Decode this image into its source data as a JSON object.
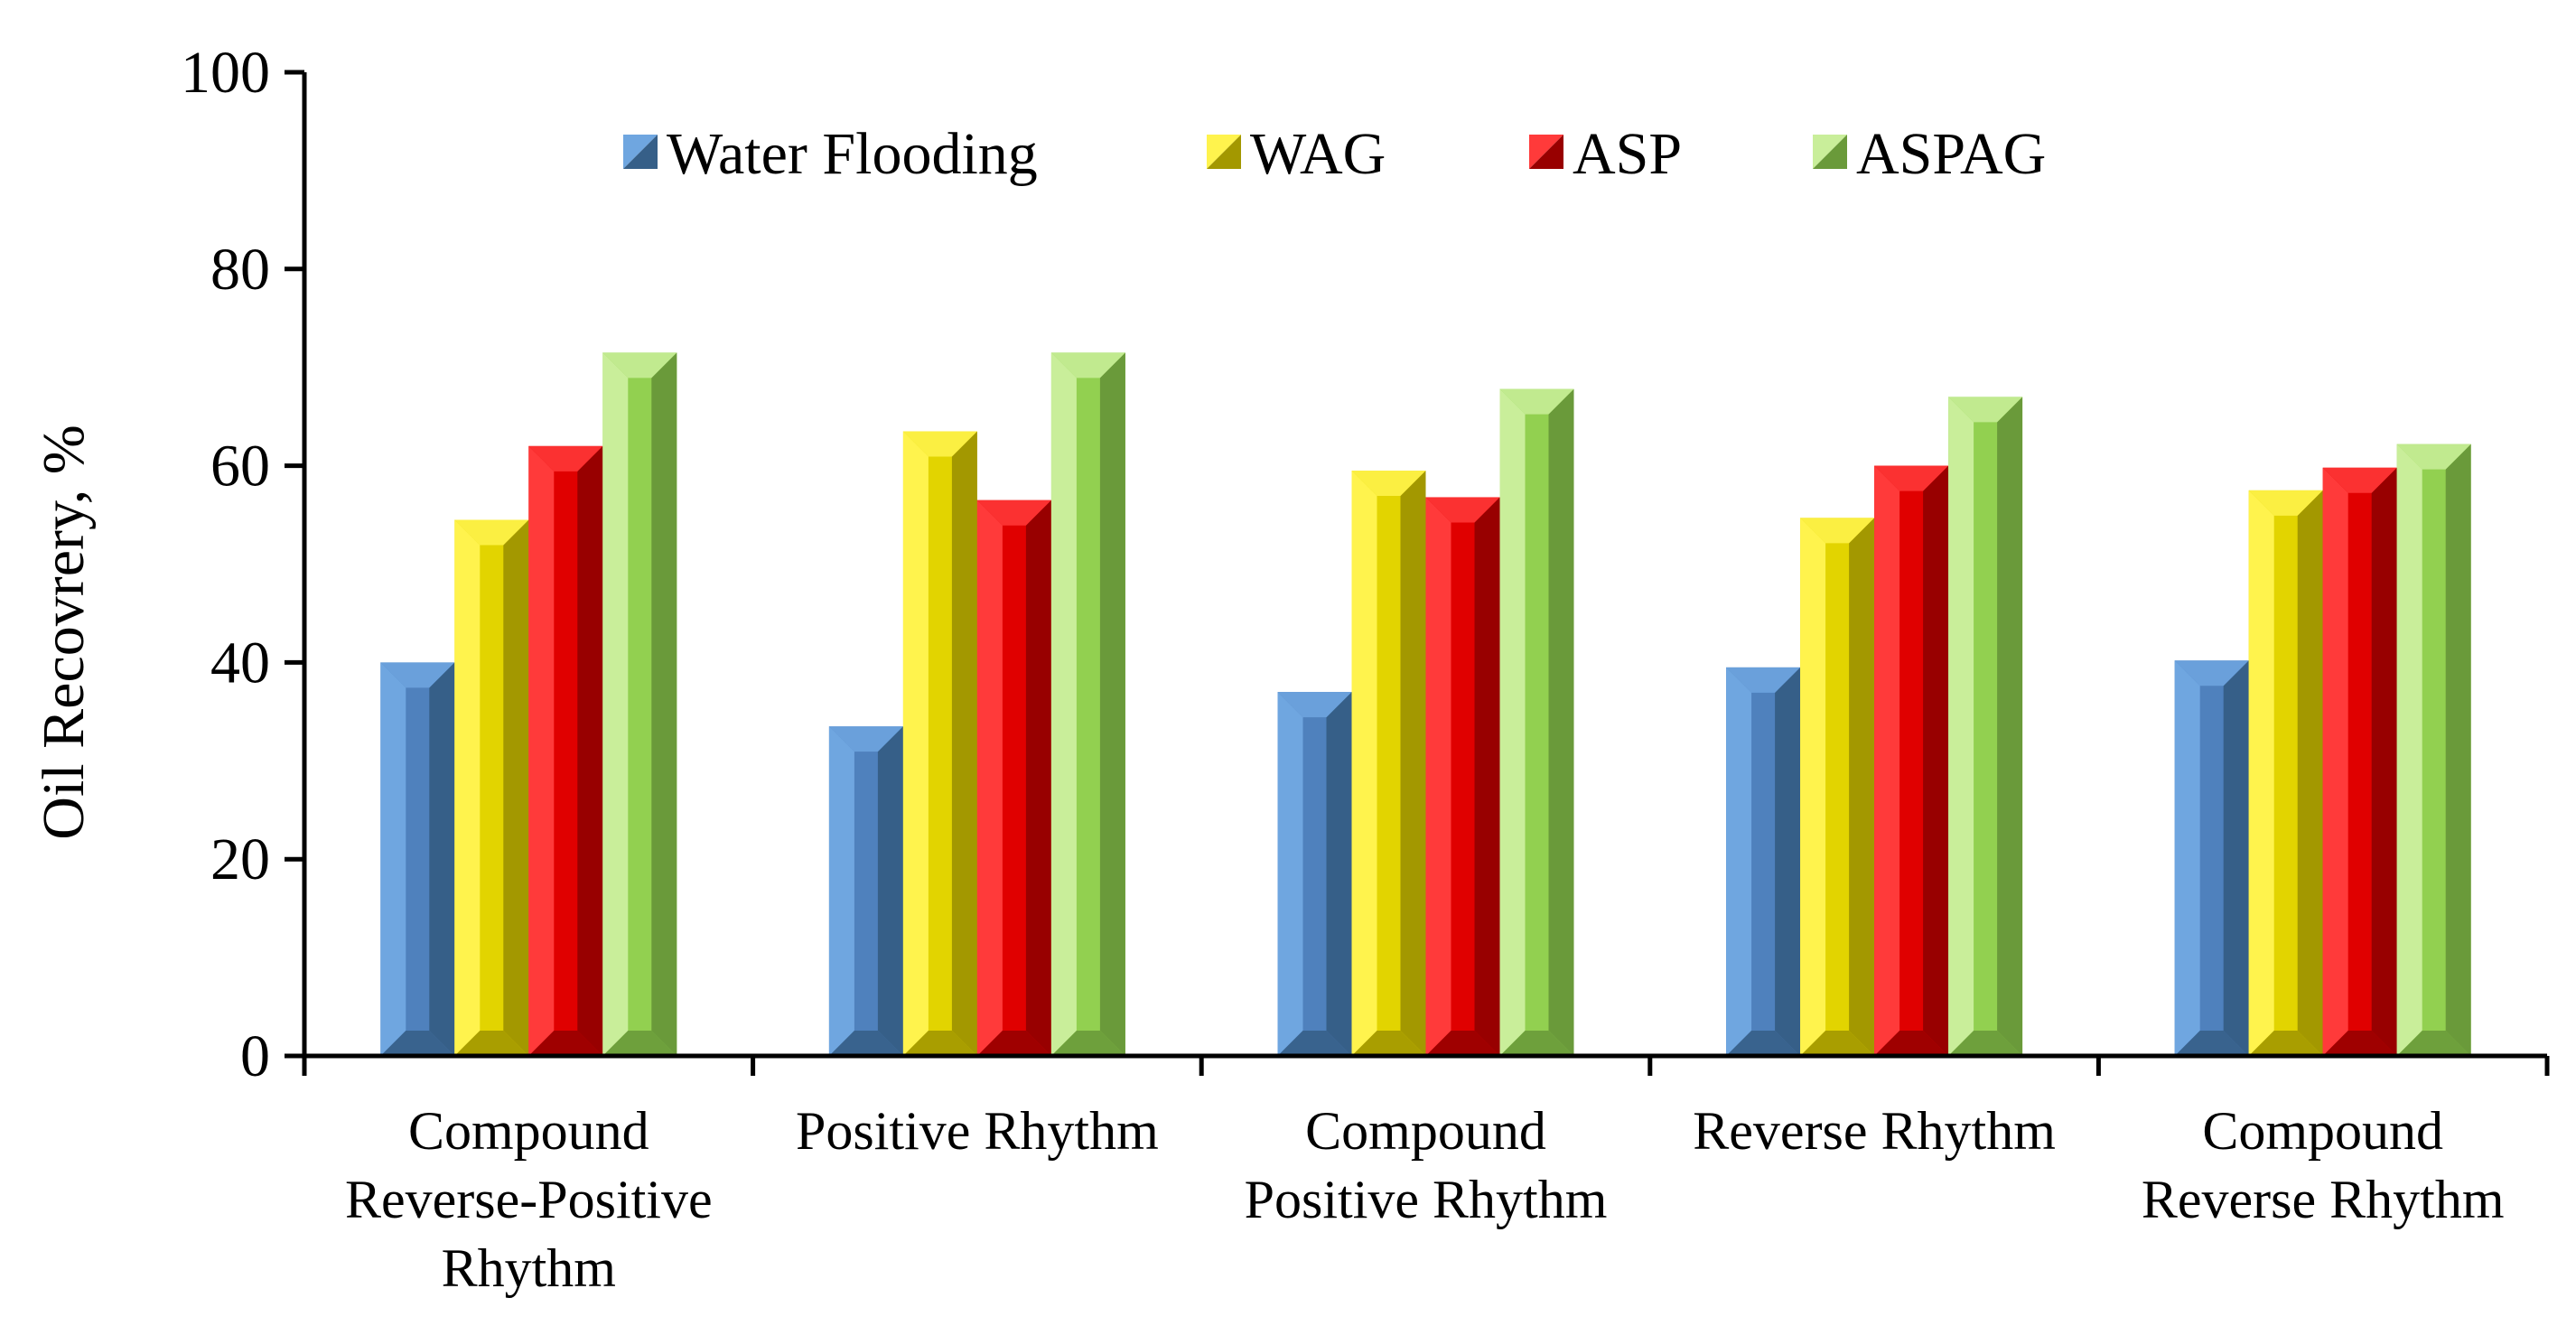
{
  "chart_data": {
    "type": "bar",
    "style": "3d-beveled",
    "title": "",
    "xlabel": "",
    "ylabel": "Oil Recovrery, %",
    "ylim": [
      0,
      100
    ],
    "yticks": [
      0,
      20,
      40,
      60,
      80,
      100
    ],
    "ytick_labels": [
      "0",
      "20",
      "40",
      "60",
      "80",
      "100"
    ],
    "grid": false,
    "legend_position": "top-center",
    "categories": [
      [
        "Compound",
        "Reverse-Positive",
        "Rhythm"
      ],
      [
        "Positive Rhythm"
      ],
      [
        "Compound",
        "Positive Rhythm"
      ],
      [
        "Reverse Rhythm"
      ],
      [
        "Compound",
        "Reverse Rhythm"
      ]
    ],
    "series": [
      {
        "name": "Water Flooding",
        "values": [
          40,
          33.5,
          37,
          39.5,
          40.2
        ],
        "colors": {
          "face": "#4f81bd",
          "light": "#6fa6e0",
          "dark": "#365f88"
        }
      },
      {
        "name": "WAG",
        "values": [
          54.5,
          63.5,
          59.5,
          54.7,
          57.5
        ],
        "colors": {
          "face": "#e2d400",
          "light": "#fff34d",
          "dark": "#a39800"
        }
      },
      {
        "name": "ASP",
        "values": [
          62,
          56.5,
          56.8,
          60,
          59.8
        ],
        "colors": {
          "face": "#e00000",
          "light": "#ff3a3a",
          "dark": "#980000"
        }
      },
      {
        "name": "ASPAG",
        "values": [
          71.5,
          71.5,
          67.8,
          67,
          62.2
        ],
        "colors": {
          "face": "#92d050",
          "light": "#c9ee9a",
          "dark": "#6a9a3a"
        }
      }
    ]
  }
}
